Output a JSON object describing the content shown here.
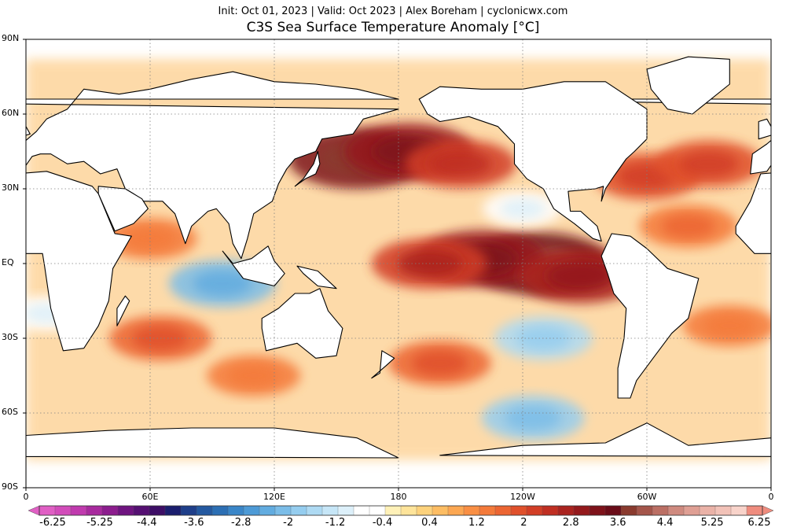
{
  "header": {
    "subtitle": "Init: Oct 01, 2023 | Valid: Oct 2023 | Alex Boreham | cyclonicwx.com",
    "title": "C3S Sea Surface Temperature Anomaly [°C]"
  },
  "map": {
    "projection": "equirectangular",
    "lon_range": [
      0,
      360
    ],
    "lat_range": [
      -90,
      90
    ],
    "lat_ticks": [
      {
        "value": 90,
        "label": "90N"
      },
      {
        "value": 60,
        "label": "60N"
      },
      {
        "value": 30,
        "label": "30N"
      },
      {
        "value": 0,
        "label": "EQ"
      },
      {
        "value": -30,
        "label": "30S"
      },
      {
        "value": -60,
        "label": "60S"
      },
      {
        "value": -90,
        "label": "90S"
      }
    ],
    "lon_ticks": [
      {
        "value": 0,
        "label": "0"
      },
      {
        "value": 60,
        "label": "60E"
      },
      {
        "value": 120,
        "label": "120E"
      },
      {
        "value": 180,
        "label": "180"
      },
      {
        "value": 240,
        "label": "120W"
      },
      {
        "value": 300,
        "label": "60W"
      },
      {
        "value": 360,
        "label": "0"
      }
    ],
    "gridlines": true,
    "land_color": "#ffffff",
    "coastline_color": "#000000"
  },
  "colorbar": {
    "units": "°C",
    "extend": "both",
    "tick_labels": [
      "-6.25",
      "-5.25",
      "-4.4",
      "-3.6",
      "-2.8",
      "-2",
      "-1.2",
      "-0.4",
      "0.4",
      "1.2",
      "2",
      "2.8",
      "3.6",
      "4.4",
      "5.25",
      "6.25"
    ],
    "colors": [
      "#e05fc4",
      "#d24cba",
      "#c03aae",
      "#a82a9e",
      "#8c1d8e",
      "#6f1480",
      "#551072",
      "#3d0e66",
      "#1b1e6e",
      "#1f3f8a",
      "#2459a0",
      "#2c6fb4",
      "#3a86c8",
      "#4d9ad6",
      "#62ace0",
      "#7bbde8",
      "#95cdef",
      "#aedaf3",
      "#c6e6f7",
      "#ddf0fa",
      "#ffffff",
      "#ffffff",
      "#fff1b8",
      "#fee49a",
      "#fdd27c",
      "#fdbd63",
      "#fca752",
      "#f98f44",
      "#f47a3a",
      "#ec6532",
      "#e0502b",
      "#d23e26",
      "#c02f22",
      "#aa231f",
      "#94191c",
      "#7e121a",
      "#6a0c18",
      "#8a3a2e",
      "#a4554a",
      "#bb6f64",
      "#cf8a7f",
      "#df9f94",
      "#eab2a7",
      "#f2c2b8",
      "#f8d3ca",
      "#ef8c7e"
    ]
  },
  "chart_data": {
    "type": "heatmap",
    "title": "C3S Sea Surface Temperature Anomaly [°C]",
    "subtitle": "Init: Oct 01, 2023 | Valid: Oct 2023 | Alex Boreham | cyclonicwx.com",
    "xlabel": "",
    "ylabel": "",
    "xlim": [
      0,
      360
    ],
    "ylim": [
      -90,
      90
    ],
    "anomaly_features": [
      {
        "lon": 248,
        "lat": 0,
        "value": 3.6
      },
      {
        "lon": 220,
        "lat": 2,
        "value": 3.0
      },
      {
        "lon": 195,
        "lat": 0,
        "value": 2.4
      },
      {
        "lon": 268,
        "lat": -5,
        "value": 2.8
      },
      {
        "lon": 160,
        "lat": 42,
        "value": 3.4
      },
      {
        "lon": 185,
        "lat": 45,
        "value": 3.0
      },
      {
        "lon": 210,
        "lat": 40,
        "value": 2.2
      },
      {
        "lon": 300,
        "lat": 35,
        "value": 2.0
      },
      {
        "lon": 330,
        "lat": 40,
        "value": 2.0
      },
      {
        "lon": 320,
        "lat": 15,
        "value": 1.6
      },
      {
        "lon": 65,
        "lat": -30,
        "value": 1.8
      },
      {
        "lon": 110,
        "lat": -45,
        "value": 1.4
      },
      {
        "lon": 200,
        "lat": -40,
        "value": 1.8
      },
      {
        "lon": 95,
        "lat": -8,
        "value": -2.0
      },
      {
        "lon": 250,
        "lat": -30,
        "value": -1.6
      },
      {
        "lon": 245,
        "lat": -62,
        "value": -1.8
      },
      {
        "lon": 240,
        "lat": 22,
        "value": -0.8
      },
      {
        "lon": 10,
        "lat": -20,
        "value": -0.8
      },
      {
        "lon": 340,
        "lat": -25,
        "value": 1.4
      },
      {
        "lon": 60,
        "lat": 10,
        "value": 1.4
      }
    ]
  }
}
